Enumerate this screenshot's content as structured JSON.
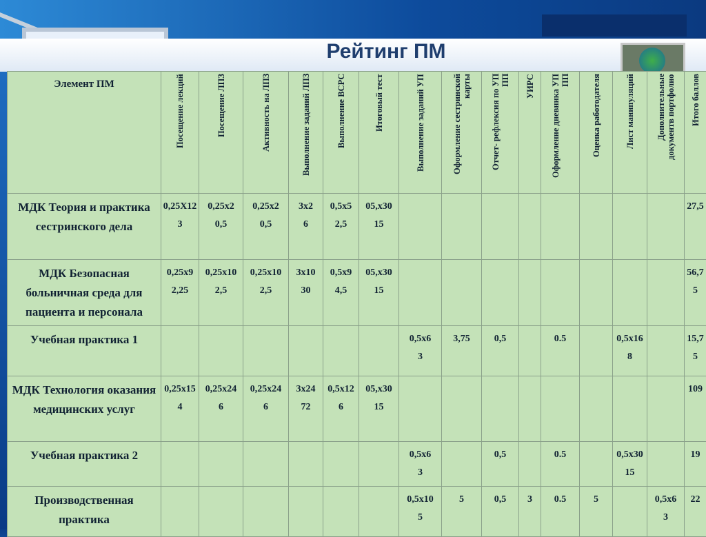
{
  "title": "Рейтинг ПМ",
  "table": {
    "header": [
      "Элемент ПМ",
      "Посещение лекций",
      "Посещение ЛПЗ",
      "Активность на ЛПЗ",
      "Выполнение заданий ЛПЗ",
      "Выполнение ВСРС",
      "Итоговый тест",
      "Выполнение заданий УП",
      "Оформление сестринской карты",
      "Отчет- рефлексия по УП ПП",
      "УИРС",
      "Оформление дневника УП ПП",
      "Оценка работодателя",
      "Лист манипуляций",
      "Дополнительные документв портфолио",
      "Итого баллов"
    ],
    "rows": [
      [
        "МДК Теория и практика сестринского дела",
        "0,25X12\n3",
        "0,25x2\n0,5",
        "0,25x2\n0,5",
        "3x2\n6",
        "0,5x5\n2,5",
        "05,x30\n15",
        null,
        null,
        null,
        null,
        null,
        null,
        null,
        null,
        "27,5"
      ],
      [
        "МДК Безопасная больничная среда для пациента и персонала",
        "0,25x9\n2,25",
        "0,25x10\n2,5",
        "0,25x10\n2,5",
        "3x10\n30",
        "0,5x9\n4,5",
        "05,x30\n15",
        null,
        null,
        null,
        null,
        null,
        null,
        null,
        null,
        "56,75"
      ],
      [
        "Учебная практика 1",
        null,
        null,
        null,
        null,
        null,
        null,
        "0,5x6\n3",
        "3,75",
        "0,5",
        null,
        "0.5",
        null,
        "0,5x16\n8",
        null,
        "15,75"
      ],
      [
        "МДК Технология оказания медицинских услуг",
        "0,25x15\n4",
        "0,25x24\n6",
        "0,25x24\n6",
        "3x24\n72",
        "0,5x12\n6",
        "05,x30\n15",
        null,
        null,
        null,
        null,
        null,
        null,
        null,
        null,
        "109"
      ],
      [
        "Учебная практика 2",
        null,
        null,
        null,
        null,
        null,
        null,
        "0,5x6\n3",
        null,
        "0,5",
        null,
        "0.5",
        null,
        "0,5x30\n15",
        null,
        "19"
      ],
      [
        "Производственная практика",
        null,
        null,
        null,
        null,
        null,
        null,
        "0,5x10\n5",
        "5",
        "0,5",
        "3",
        "0.5",
        "5",
        null,
        "0,5x6\n3",
        "22"
      ]
    ]
  }
}
